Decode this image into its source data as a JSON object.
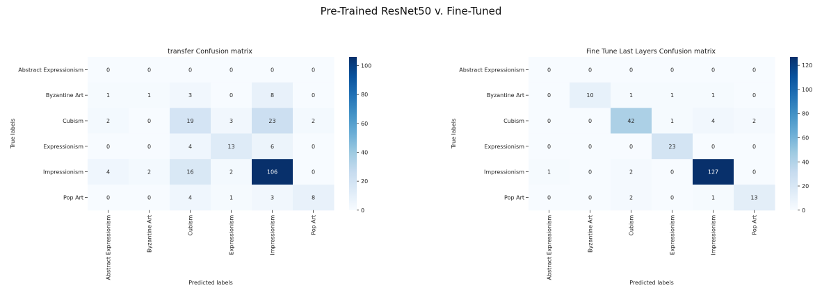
{
  "suptitle": "Pre-Trained ResNet50 v. Fine-Tuned",
  "chart_data": [
    {
      "type": "heatmap",
      "title": "transfer Confusion matrix",
      "xlabel": "Predicted labels",
      "ylabel": "True labels",
      "rows": [
        "Abstract Expressionism",
        "Byzantine Art",
        "Cubism",
        "Expressionism",
        "Impressionism",
        "Pop Art"
      ],
      "cols": [
        "Abstract Expressionism",
        "Byzantine Art",
        "Cubism",
        "Expressionism",
        "Impressionism",
        "Pop Art"
      ],
      "values": [
        [
          0,
          0,
          0,
          0,
          0,
          0
        ],
        [
          1,
          1,
          3,
          0,
          8,
          0
        ],
        [
          2,
          0,
          19,
          3,
          23,
          2
        ],
        [
          0,
          0,
          4,
          13,
          6,
          0
        ],
        [
          4,
          2,
          16,
          2,
          106,
          0
        ],
        [
          0,
          0,
          4,
          1,
          3,
          8
        ]
      ],
      "colormap": "Blues",
      "vmin": 0,
      "vmax": 106,
      "colorbar_ticks": [
        0,
        20,
        40,
        60,
        80,
        100
      ]
    },
    {
      "type": "heatmap",
      "title": "Fine Tune Last Layers Confusion matrix",
      "xlabel": "Predicted labels",
      "ylabel": "True labels",
      "rows": [
        "Abstract Expressionism",
        "Byzantine Art",
        "Cubism",
        "Expressionism",
        "Impressionism",
        "Pop Art"
      ],
      "cols": [
        "Abstract Expressionism",
        "Byzantine Art",
        "Cubism",
        "Expressionism",
        "Impressionism",
        "Pop Art"
      ],
      "values": [
        [
          0,
          0,
          0,
          0,
          0,
          0
        ],
        [
          0,
          10,
          1,
          1,
          1,
          0
        ],
        [
          0,
          0,
          42,
          1,
          4,
          2
        ],
        [
          0,
          0,
          0,
          23,
          0,
          0
        ],
        [
          1,
          0,
          2,
          0,
          127,
          0
        ],
        [
          0,
          0,
          2,
          0,
          1,
          13
        ]
      ],
      "colormap": "Blues",
      "vmin": 0,
      "vmax": 127,
      "colorbar_ticks": [
        0,
        20,
        40,
        60,
        80,
        100,
        120
      ]
    }
  ]
}
